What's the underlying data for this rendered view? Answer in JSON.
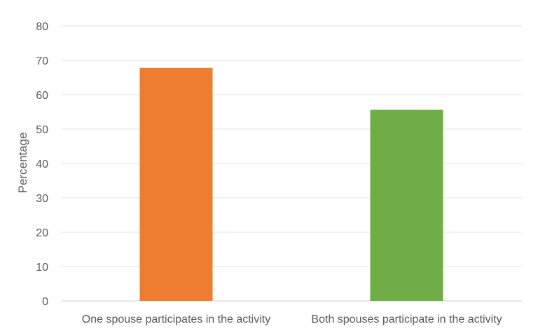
{
  "chart_data": {
    "type": "bar",
    "categories": [
      "One spouse participates in the activity",
      "Both spouses participate in the activity"
    ],
    "values": [
      67.8,
      55.6
    ],
    "colors": [
      "#ED7D31",
      "#70AD47"
    ],
    "title": "",
    "xlabel": "",
    "ylabel": "Percentage",
    "ylim": [
      0,
      80
    ],
    "yticks": [
      "0",
      "10",
      "20",
      "30",
      "40",
      "50",
      "60",
      "70",
      "80"
    ],
    "grid": true,
    "legend": "none"
  }
}
